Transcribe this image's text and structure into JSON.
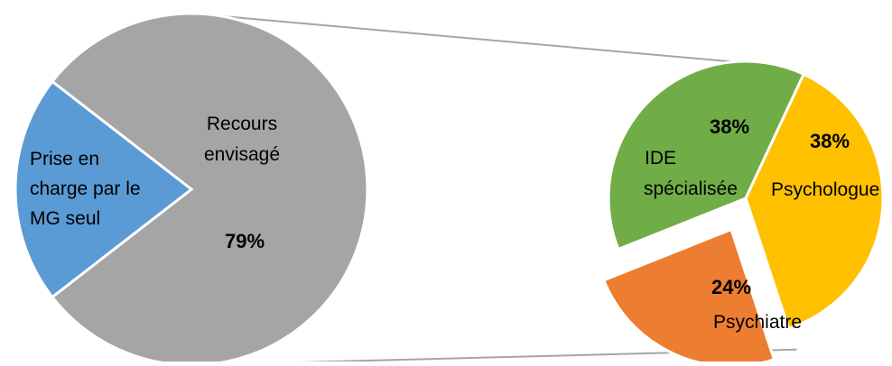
{
  "chart_data": {
    "type": "pie",
    "description": "bar-of-pie",
    "main_pie": {
      "slices": [
        {
          "label": "Prise en charge par le MG seul",
          "value": 21,
          "value_label": "",
          "color": "#5B9BD5"
        },
        {
          "label": "Recours envisagé",
          "value": 79,
          "value_label": "79%",
          "color": "#A5A5A5"
        }
      ],
      "label_lines": {
        "mg": [
          "Prise en",
          "charge par le",
          "MG seul"
        ],
        "recours": [
          "Recours",
          "envisagé"
        ]
      }
    },
    "secondary_pie": {
      "slices": [
        {
          "label": "Psychologue",
          "value": 38,
          "value_label": "38%",
          "color": "#FFC000",
          "exploded": false
        },
        {
          "label": "Psychiatre",
          "value": 24,
          "value_label": "24%",
          "color": "#ED7D31",
          "exploded": true
        },
        {
          "label": "IDE spécialisée",
          "value": 38,
          "value_label": "38%",
          "color": "#70AD47",
          "exploded": false
        }
      ],
      "label_lines": {
        "ide": [
          "IDE",
          "spécialisée"
        ],
        "psychologue": [
          "Psychologue"
        ],
        "psychiatre": [
          "Psychiatre"
        ]
      }
    },
    "connector_color": "#A5A5A5",
    "legend": "none"
  }
}
